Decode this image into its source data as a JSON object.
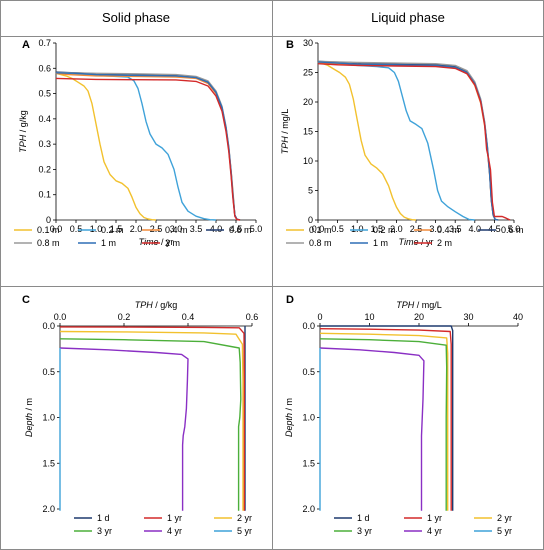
{
  "headers": {
    "solid": "Solid phase",
    "liquid": "Liquid phase"
  },
  "chart_data": [
    {
      "id": "A",
      "panel_label": "A",
      "type": "line",
      "xlabel": "Time / yr",
      "ylabel": "TPH / g/kg",
      "ylabel_var": "TPH",
      "ylabel_unit": " / g/kg",
      "xlabel_var": "Time",
      "xlabel_unit": " / yr",
      "xlim": [
        0,
        5
      ],
      "ylim": [
        0,
        0.7
      ],
      "xticks": [
        0.0,
        0.5,
        1.0,
        1.5,
        2.0,
        2.5,
        3.0,
        3.5,
        4.0,
        4.5,
        5.0
      ],
      "yticks": [
        0,
        0.1,
        0.2,
        0.3,
        0.4,
        0.5,
        0.6,
        0.7
      ],
      "xtick_labels": [
        "0.0",
        "0.5",
        "1.0",
        "1.5",
        "2.0",
        "2.5",
        "3.0",
        "3.5",
        "4.0",
        "4.5",
        "5.0"
      ],
      "ytick_labels": [
        "0",
        "0.1",
        "0.2",
        "0.3",
        "0.4",
        "0.5",
        "0.6",
        "0.7"
      ],
      "grid": false,
      "legend_position": "bottom",
      "series": [
        {
          "name": "0.1 m",
          "color": "#f2c12e",
          "x": [
            0,
            0.25,
            0.4,
            0.55,
            0.7,
            0.8,
            0.9,
            1.0,
            1.1,
            1.2,
            1.35,
            1.5,
            1.65,
            1.8,
            1.9,
            2.0,
            2.1,
            2.2,
            2.3,
            2.4,
            2.5
          ],
          "y": [
            0.58,
            0.57,
            0.56,
            0.545,
            0.53,
            0.51,
            0.46,
            0.38,
            0.3,
            0.23,
            0.18,
            0.155,
            0.145,
            0.125,
            0.09,
            0.05,
            0.025,
            0.01,
            0.004,
            0.001,
            0
          ]
        },
        {
          "name": "0.2 m",
          "color": "#3fa2d9",
          "x": [
            0,
            0.5,
            1.0,
            1.5,
            1.8,
            1.95,
            2.05,
            2.15,
            2.25,
            2.35,
            2.5,
            2.65,
            2.8,
            2.95,
            3.05,
            3.15,
            3.3,
            3.5,
            3.7,
            3.85,
            4.0
          ],
          "y": [
            0.58,
            0.575,
            0.572,
            0.568,
            0.565,
            0.55,
            0.52,
            0.46,
            0.39,
            0.34,
            0.3,
            0.285,
            0.26,
            0.2,
            0.13,
            0.07,
            0.035,
            0.015,
            0.005,
            0.001,
            0
          ]
        },
        {
          "name": "0.4 m",
          "color": "#f08a3a",
          "x": [
            0,
            0.3,
            1.0,
            2.0,
            3.0,
            3.5,
            3.8,
            4.0,
            4.15,
            4.25,
            4.32,
            4.38,
            4.42,
            4.47,
            4.52,
            4.6
          ],
          "y": [
            0.58,
            0.575,
            0.57,
            0.568,
            0.565,
            0.56,
            0.54,
            0.5,
            0.44,
            0.36,
            0.28,
            0.19,
            0.12,
            0.02,
            0.003,
            0
          ]
        },
        {
          "name": "0.6 m",
          "color": "#1f3a6e",
          "x": [
            0,
            0.3,
            0.8,
            1.0,
            1.1,
            2.0,
            3.0,
            3.5,
            3.8,
            4.0,
            4.15,
            4.25,
            4.32,
            4.38,
            4.42,
            4.47,
            4.52,
            4.6
          ],
          "y": [
            0.585,
            0.583,
            0.58,
            0.578,
            0.575,
            0.574,
            0.573,
            0.565,
            0.545,
            0.505,
            0.445,
            0.365,
            0.28,
            0.18,
            0.1,
            0.02,
            0.003,
            0
          ]
        },
        {
          "name": "0.8 m",
          "color": "#9a9a9a",
          "x": [
            0,
            0.5,
            1.0,
            2.0,
            3.0,
            3.5,
            3.8,
            4.0,
            4.15,
            4.25,
            4.32,
            4.38,
            4.42,
            4.47,
            4.52,
            4.6
          ],
          "y": [
            0.583,
            0.582,
            0.58,
            0.578,
            0.575,
            0.568,
            0.55,
            0.51,
            0.45,
            0.37,
            0.29,
            0.19,
            0.11,
            0.02,
            0.003,
            0
          ]
        },
        {
          "name": "1 m",
          "color": "#2e6fb6",
          "x": [
            0,
            0.5,
            1.0,
            2.0,
            3.0,
            3.5,
            3.8,
            4.0,
            4.15,
            4.25,
            4.32,
            4.38,
            4.42,
            4.47,
            4.52,
            4.6
          ],
          "y": [
            0.582,
            0.58,
            0.575,
            0.572,
            0.57,
            0.563,
            0.545,
            0.505,
            0.445,
            0.365,
            0.285,
            0.185,
            0.105,
            0.02,
            0.003,
            0
          ]
        },
        {
          "name": "2 m",
          "color": "#d42a2a",
          "x": [
            0,
            0.5,
            1.0,
            2.0,
            3.0,
            3.5,
            3.8,
            4.0,
            4.15,
            4.25,
            4.32,
            4.38,
            4.42,
            4.47,
            4.52,
            4.6
          ],
          "y": [
            0.56,
            0.558,
            0.556,
            0.555,
            0.554,
            0.548,
            0.53,
            0.49,
            0.43,
            0.35,
            0.27,
            0.17,
            0.09,
            0.015,
            0.002,
            0
          ]
        }
      ]
    },
    {
      "id": "B",
      "panel_label": "B",
      "type": "line",
      "xlabel": "Time / yr",
      "ylabel": "TPH / mg/L",
      "ylabel_var": "TPH",
      "ylabel_unit": " / mg/L",
      "xlabel_var": "Time",
      "xlabel_unit": " / yr",
      "xlim": [
        0,
        5
      ],
      "ylim": [
        0,
        30
      ],
      "xticks": [
        0.0,
        0.5,
        1.0,
        1.5,
        2.0,
        2.5,
        3.0,
        3.5,
        4.0,
        4.5,
        5.0
      ],
      "yticks": [
        0,
        5,
        10,
        15,
        20,
        25,
        30
      ],
      "xtick_labels": [
        "0.0",
        "0.5",
        "1.0",
        "1.5",
        "2.0",
        "2.5",
        "3.0",
        "3.5",
        "4.0",
        "4.5",
        "5.0"
      ],
      "ytick_labels": [
        "0",
        "5",
        "10",
        "15",
        "20",
        "25",
        "30"
      ],
      "grid": false,
      "legend_position": "bottom",
      "series": [
        {
          "name": "0.1 m",
          "color": "#f2c12e",
          "x": [
            0,
            0.25,
            0.4,
            0.55,
            0.7,
            0.8,
            0.9,
            1.0,
            1.1,
            1.2,
            1.35,
            1.5,
            1.65,
            1.8,
            1.9,
            2.0,
            2.1,
            2.2,
            2.3,
            2.4,
            2.5
          ],
          "y": [
            26.8,
            26.2,
            25.6,
            25,
            24.2,
            23,
            20.5,
            17,
            13.5,
            11,
            9.5,
            8.8,
            7.8,
            5.8,
            3.8,
            2.2,
            1.1,
            0.5,
            0.2,
            0.05,
            0
          ]
        },
        {
          "name": "0.2 m",
          "color": "#3fa2d9",
          "x": [
            0,
            0.5,
            1.0,
            1.5,
            1.8,
            1.95,
            2.05,
            2.15,
            2.25,
            2.35,
            2.5,
            2.65,
            2.8,
            2.95,
            3.05,
            3.15,
            3.3,
            3.5,
            3.7,
            3.85,
            4.0
          ],
          "y": [
            26.8,
            26.5,
            26.2,
            26,
            25.8,
            25,
            23.5,
            21,
            18.5,
            16.8,
            16.2,
            15.5,
            13,
            8.5,
            5,
            3.2,
            2.3,
            1.4,
            0.6,
            0.1,
            0
          ]
        },
        {
          "name": "0.4 m",
          "color": "#f08a3a",
          "x": [
            0,
            0.3,
            1.0,
            2.0,
            3.0,
            3.5,
            3.8,
            4.0,
            4.15,
            4.25,
            4.32,
            4.38,
            4.42,
            4.47,
            4.52,
            4.6
          ],
          "y": [
            26.8,
            26.5,
            26.3,
            26.2,
            26.1,
            25.8,
            24.8,
            22.8,
            19.8,
            16,
            12,
            7.5,
            3.2,
            0.8,
            0.1,
            0
          ]
        },
        {
          "name": "0.6 m",
          "color": "#1f3a6e",
          "x": [
            0,
            0.3,
            0.8,
            1.0,
            1.1,
            2.0,
            3.0,
            3.5,
            3.8,
            4.0,
            4.15,
            4.25,
            4.32,
            4.38,
            4.42,
            4.47,
            4.52,
            4.6
          ],
          "y": [
            26.9,
            26.8,
            26.7,
            26.6,
            26.5,
            26.4,
            26.3,
            26,
            25.1,
            23.2,
            20.3,
            16.5,
            12.5,
            7.8,
            3.5,
            0.8,
            0.1,
            0
          ]
        },
        {
          "name": "0.8 m",
          "color": "#9a9a9a",
          "x": [
            0,
            0.5,
            1.0,
            2.0,
            3.0,
            3.5,
            3.8,
            4.0,
            4.15,
            4.25,
            4.32,
            4.38,
            4.42,
            4.47,
            4.52,
            4.6
          ],
          "y": [
            26.9,
            26.8,
            26.7,
            26.6,
            26.5,
            26.2,
            25.3,
            23.4,
            20.5,
            16.7,
            12.7,
            8,
            3.6,
            0.9,
            0.1,
            0
          ]
        },
        {
          "name": "1 m",
          "color": "#2e6fb6",
          "x": [
            0,
            0.5,
            1.0,
            2.0,
            3.0,
            3.5,
            3.8,
            4.0,
            4.15,
            4.25,
            4.32,
            4.38,
            4.42,
            4.47,
            4.52,
            4.6
          ],
          "y": [
            26.8,
            26.6,
            26.4,
            26.3,
            26.2,
            25.9,
            25,
            23.1,
            20.2,
            16.4,
            12.4,
            7.7,
            3.4,
            0.8,
            0.1,
            0
          ]
        },
        {
          "name": "2 m",
          "color": "#d42a2a",
          "x": [
            0,
            0.5,
            1.0,
            2.0,
            3.0,
            3.5,
            3.8,
            4.0,
            4.15,
            4.25,
            4.3,
            4.35,
            4.4,
            4.45,
            4.5,
            4.7,
            4.8,
            4.9
          ],
          "y": [
            26.5,
            26.3,
            26.2,
            26.1,
            26,
            25.7,
            24.8,
            22.9,
            20,
            16.2,
            12,
            10.5,
            8.5,
            3,
            0.6,
            0.6,
            0.3,
            0
          ]
        }
      ]
    },
    {
      "id": "C",
      "panel_label": "C",
      "type": "line",
      "xlabel": "TPH / g/kg",
      "ylabel": "Depth / m",
      "xlabel_var": "TPH",
      "xlabel_unit": " / g/kg",
      "ylabel_var": "Depth",
      "ylabel_unit": " / m",
      "xlim": [
        0,
        0.6
      ],
      "ylim": [
        2.0,
        0.0
      ],
      "xaxis_position": "top",
      "yaxis_inverted": true,
      "xticks": [
        0,
        0.2,
        0.4,
        0.6
      ],
      "yticks": [
        0.0,
        0.5,
        1.0,
        1.5,
        2.0
      ],
      "xtick_labels": [
        "0.0",
        "0.2",
        "0.4",
        "0.6"
      ],
      "ytick_labels": [
        "0.0",
        "0.5",
        "1.0",
        "1.5",
        "2.0"
      ],
      "grid": false,
      "legend_position": "bottom",
      "series": [
        {
          "name": "1 d",
          "color": "#1f3a6e",
          "x": [
            0.578,
            0.578,
            0.578
          ],
          "y": [
            0,
            1.0,
            2.02
          ]
        },
        {
          "name": "1 yr",
          "color": "#d42a2a",
          "x": [
            0.0,
            0.2,
            0.45,
            0.56,
            0.575,
            0.576,
            0.576
          ],
          "y": [
            0.01,
            0.012,
            0.015,
            0.02,
            0.08,
            0.5,
            2.02
          ]
        },
        {
          "name": "2 yr",
          "color": "#f2c12e",
          "x": [
            0.0,
            0.2,
            0.45,
            0.55,
            0.57,
            0.572,
            0.572
          ],
          "y": [
            0.06,
            0.065,
            0.075,
            0.09,
            0.2,
            0.6,
            2.02
          ]
        },
        {
          "name": "3 yr",
          "color": "#4caf3a",
          "x": [
            0.0,
            0.2,
            0.45,
            0.56,
            0.563,
            0.565,
            0.562,
            0.56,
            0.558,
            0.558
          ],
          "y": [
            0.14,
            0.15,
            0.17,
            0.24,
            0.4,
            0.8,
            1.0,
            1.05,
            1.1,
            2.02
          ]
        },
        {
          "name": "4 yr",
          "color": "#8a2fc4",
          "x": [
            0.0,
            0.15,
            0.3,
            0.38,
            0.4,
            0.398,
            0.395,
            0.39,
            0.385,
            0.383,
            0.383
          ],
          "y": [
            0.24,
            0.26,
            0.29,
            0.31,
            0.36,
            0.6,
            0.9,
            1.1,
            1.2,
            1.3,
            2.02
          ]
        },
        {
          "name": "5 yr",
          "color": "#3fa2d9",
          "x": [
            0.0,
            0.0,
            0.0
          ],
          "y": [
            0.24,
            1.0,
            2.02
          ]
        }
      ]
    },
    {
      "id": "D",
      "panel_label": "D",
      "type": "line",
      "xlabel": "TPH / mg/L",
      "ylabel": "Depth / m",
      "xlabel_var": "TPH",
      "xlabel_unit": " / mg/L",
      "ylabel_var": "Depth",
      "ylabel_unit": " / m",
      "xlim": [
        0,
        40
      ],
      "ylim": [
        2.0,
        0.0
      ],
      "xaxis_position": "top",
      "yaxis_inverted": true,
      "xticks": [
        0,
        10,
        20,
        30,
        40
      ],
      "yticks": [
        0.0,
        0.5,
        1.0,
        1.5,
        2.0
      ],
      "xtick_labels": [
        "0",
        "10",
        "20",
        "30",
        "40"
      ],
      "ytick_labels": [
        "0.0",
        "0.5",
        "1.0",
        "1.5",
        "2.0"
      ],
      "grid": false,
      "legend_position": "bottom",
      "series": [
        {
          "name": "1 d",
          "color": "#1f3a6e",
          "x": [
            0.0,
            15,
            26.5,
            26.8,
            26.8
          ],
          "y": [
            0.0,
            0.0,
            0.0,
            0.05,
            2.02
          ]
        },
        {
          "name": "1 yr",
          "color": "#d42a2a",
          "x": [
            0.0,
            10,
            20,
            26.3,
            26.5,
            26.5
          ],
          "y": [
            0.03,
            0.035,
            0.045,
            0.06,
            0.2,
            2.02
          ]
        },
        {
          "name": "2 yr",
          "color": "#f2c12e",
          "x": [
            0.0,
            10,
            20,
            25.6,
            25.8,
            25.8
          ],
          "y": [
            0.08,
            0.09,
            0.105,
            0.13,
            0.3,
            2.02
          ]
        },
        {
          "name": "3 yr",
          "color": "#4caf3a",
          "x": [
            0.0,
            10,
            20,
            25.5,
            25.6,
            25.5,
            25.5
          ],
          "y": [
            0.14,
            0.15,
            0.17,
            0.21,
            0.45,
            1.0,
            2.02
          ]
        },
        {
          "name": "4 yr",
          "color": "#8a2fc4",
          "x": [
            0.0,
            8,
            15,
            20,
            21,
            20.8,
            20.5,
            20.5
          ],
          "y": [
            0.24,
            0.26,
            0.29,
            0.32,
            0.38,
            0.8,
            1.2,
            2.02
          ]
        },
        {
          "name": "5 yr",
          "color": "#3fa2d9",
          "x": [
            0.0,
            0.0,
            0.0
          ],
          "y": [
            0.24,
            1.0,
            2.02
          ]
        }
      ]
    }
  ]
}
